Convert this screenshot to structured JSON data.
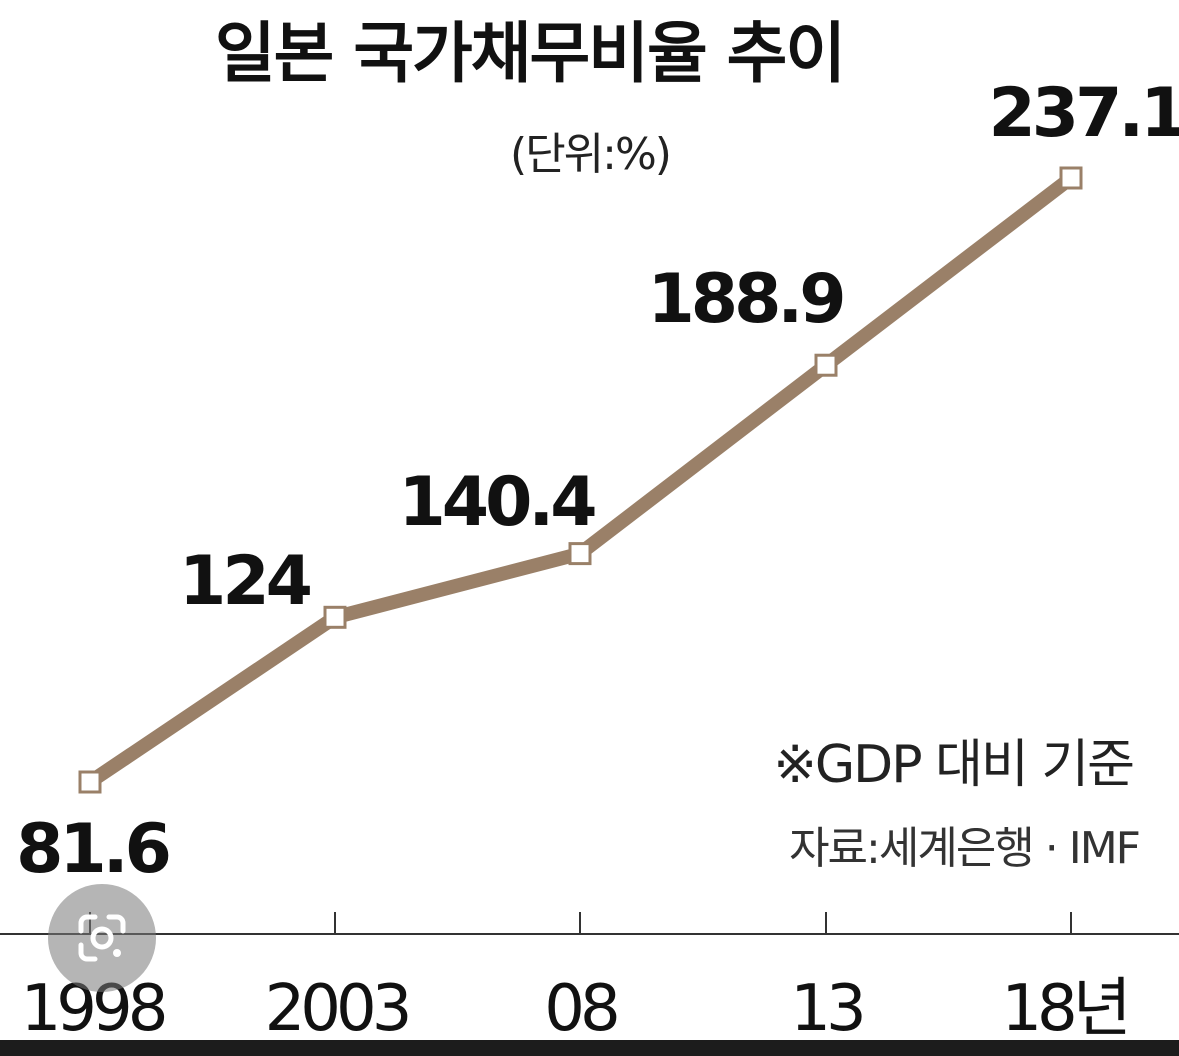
{
  "chart_data": {
    "type": "line",
    "title": "일본 국가채무비율 추이",
    "unit_label": "(단위:%)",
    "categories": [
      "1998",
      "2003",
      "08",
      "13",
      "18년"
    ],
    "series": [
      {
        "values": [
          81.6,
          124,
          140.4,
          188.9,
          237.1
        ]
      }
    ],
    "data_labels": [
      "81.6",
      "124",
      "140.4",
      "188.9",
      "237.1"
    ],
    "annotation": "※GDP 대비 기준",
    "source": "자료:세계은행 · IMF",
    "grid": false,
    "colors": {
      "line": "#9a8068",
      "marker_fill": "#ffffff",
      "marker_stroke": "#9a8068",
      "axis": "#333333",
      "text": "#111111"
    }
  },
  "overlay": {
    "lens_icon": "google-lens-icon",
    "bottom_bar_color": "#1c1c1c"
  }
}
